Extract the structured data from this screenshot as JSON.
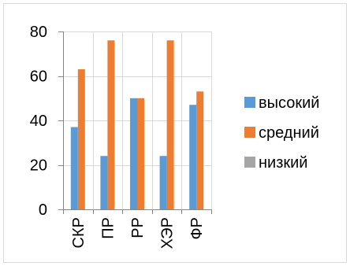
{
  "chart_data": {
    "type": "bar",
    "categories": [
      "СКР",
      "ПР",
      "РР",
      "ХЭР",
      "ФР"
    ],
    "series": [
      {
        "name": "высокий",
        "values": [
          37,
          24,
          50,
          24,
          47
        ],
        "color": "#5b9bd5"
      },
      {
        "name": "средний",
        "values": [
          63,
          76,
          50,
          76,
          53
        ],
        "color": "#ed7d31"
      },
      {
        "name": "низкий",
        "values": [
          0,
          0,
          0,
          0,
          0
        ],
        "color": "#a5a5a5"
      }
    ],
    "ylim": [
      0,
      80
    ],
    "yticks": [
      0,
      20,
      40,
      60,
      80
    ],
    "grid": true,
    "legend_position": "right",
    "title": "",
    "xlabel": "",
    "ylabel": ""
  }
}
